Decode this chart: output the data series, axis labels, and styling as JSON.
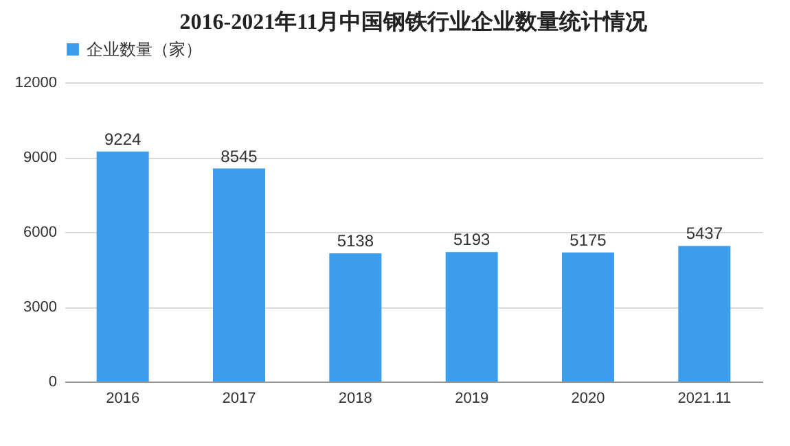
{
  "chart_data": {
    "type": "bar",
    "title": "2016-2021年11月中国钢铁行业企业数量统计情况",
    "categories": [
      "2016",
      "2017",
      "2018",
      "2019",
      "2020",
      "2021.11"
    ],
    "series": [
      {
        "name": "企业数量（家）",
        "color": "#3d9ded",
        "values": [
          9224,
          8545,
          5138,
          5193,
          5175,
          5437
        ]
      }
    ],
    "ylim": [
      0,
      12000
    ],
    "yticks": [
      0,
      3000,
      6000,
      9000,
      12000
    ],
    "grid": "y",
    "legend": "top",
    "data_labels": true
  }
}
